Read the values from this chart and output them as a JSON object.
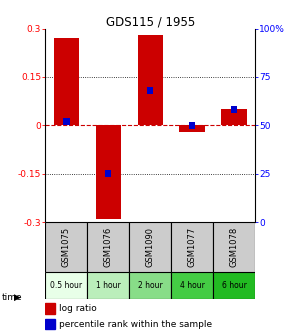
{
  "title": "GDS115 / 1955",
  "samples": [
    "GSM1075",
    "GSM1076",
    "GSM1090",
    "GSM1077",
    "GSM1078"
  ],
  "time_labels": [
    "0.5 hour",
    "1 hour",
    "2 hour",
    "4 hour",
    "6 hour"
  ],
  "time_colors": [
    "#e8ffe8",
    "#bbeebb",
    "#88dd88",
    "#44cc44",
    "#22bb22"
  ],
  "log_ratios": [
    0.27,
    -0.29,
    0.28,
    -0.02,
    0.05
  ],
  "percentile_ranks": [
    52,
    25,
    68,
    50,
    58
  ],
  "ylim_left": [
    -0.3,
    0.3
  ],
  "ylim_right": [
    0,
    100
  ],
  "yticks_left": [
    -0.3,
    -0.15,
    0,
    0.15,
    0.3
  ],
  "yticks_right": [
    0,
    25,
    50,
    75,
    100
  ],
  "bar_color": "#cc0000",
  "percentile_color": "#0000cc",
  "zero_line_color": "#cc0000",
  "background_color": "#ffffff",
  "sample_bg": "#cccccc"
}
